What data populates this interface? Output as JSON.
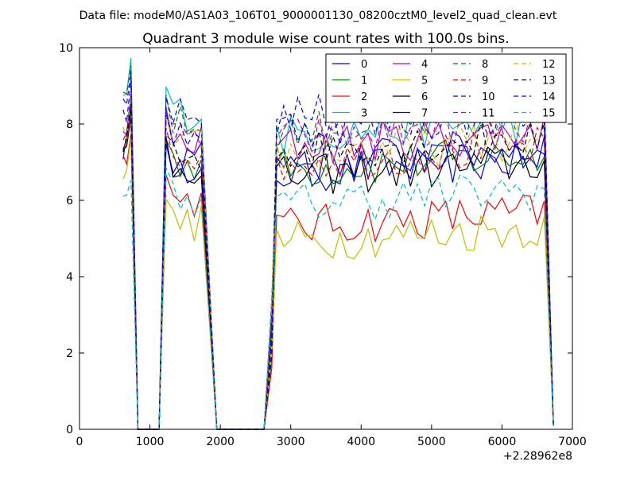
{
  "chart_data": {
    "type": "line",
    "suptitle": "Data file: modeM0/AS1A03_106T01_9000001130_08200cztM0_level2_quad_clean.evt",
    "title": "Quadrant 3 module wise count rates with 100.0s bins.",
    "xlabel": "",
    "ylabel": "",
    "x_offset_label": "+2.28962e8",
    "xlim": [
      0,
      7000
    ],
    "ylim": [
      0,
      10
    ],
    "xticks": [
      0,
      1000,
      2000,
      3000,
      4000,
      5000,
      6000,
      7000
    ],
    "yticks": [
      0,
      2,
      4,
      6,
      8,
      10
    ],
    "grid": false,
    "legend_position": "top-right",
    "legend_columns": 4,
    "series": [
      {
        "name": "0",
        "color": "#0000ff",
        "dash": "solid",
        "level_seg1": 7.6,
        "level_seg2": 7.1,
        "level_seg3": 6.7
      },
      {
        "name": "1",
        "color": "#008000",
        "dash": "solid",
        "level_seg1": 7.5,
        "level_seg2": 7.0,
        "level_seg3": 6.8
      },
      {
        "name": "2",
        "color": "#ff0000",
        "dash": "solid",
        "level_seg1": 7.2,
        "level_seg2": 6.0,
        "level_seg3": 5.3
      },
      {
        "name": "3",
        "color": "#00bfbf",
        "dash": "solid",
        "level_seg1": 8.8,
        "level_seg2": 8.3,
        "level_seg3": 7.7
      },
      {
        "name": "4",
        "color": "#bf00bf",
        "dash": "solid",
        "level_seg1": 7.9,
        "level_seg2": 7.5,
        "level_seg3": 7.4
      },
      {
        "name": "5",
        "color": "#bfbf00",
        "dash": "solid",
        "level_seg1": 7.0,
        "level_seg2": 5.4,
        "level_seg3": 4.9
      },
      {
        "name": "6",
        "color": "#000000",
        "dash": "solid",
        "level_seg1": 7.3,
        "level_seg2": 6.9,
        "level_seg3": 6.6
      },
      {
        "name": "7",
        "color": "#0000ff",
        "dash": "solid",
        "level_seg1": 7.4,
        "level_seg2": 6.9,
        "level_seg3": 7.0
      },
      {
        "name": "8",
        "color": "#008000",
        "dash": "dashed",
        "level_seg1": 8.9,
        "level_seg2": 8.0,
        "level_seg3": 7.8
      },
      {
        "name": "9",
        "color": "#ff0000",
        "dash": "dashed",
        "level_seg1": 7.6,
        "level_seg2": 7.3,
        "level_seg3": 7.0
      },
      {
        "name": "10",
        "color": "#0000ff",
        "dash": "dashed",
        "level_seg1": 8.5,
        "level_seg2": 8.2,
        "level_seg3": 8.2
      },
      {
        "name": "11",
        "color": "#bf00bf",
        "dash": "dashed",
        "level_seg1": 8.0,
        "level_seg2": 7.6,
        "level_seg3": 7.6
      },
      {
        "name": "12",
        "color": "#bfbf00",
        "dash": "dashed",
        "level_seg1": 7.8,
        "level_seg2": 7.4,
        "level_seg3": 7.2
      },
      {
        "name": "13",
        "color": "#000000",
        "dash": "dashed",
        "level_seg1": 7.5,
        "level_seg2": 7.1,
        "level_seg3": 7.3
      },
      {
        "name": "14",
        "color": "#0000ff",
        "dash": "dashed",
        "level_seg1": 8.2,
        "level_seg2": 7.8,
        "level_seg3": 7.9
      },
      {
        "name": "15",
        "color": "#00bfbf",
        "dash": "dashed",
        "level_seg1": 6.0,
        "level_seg2": 6.1,
        "level_seg3": 5.9
      }
    ],
    "segments": [
      {
        "start": 620,
        "end": 730,
        "zero_after": 830
      },
      {
        "start": 1230,
        "end": 1800,
        "zero_after": 1950
      },
      {
        "start": 2800,
        "end": 6650,
        "zero_after": 6730
      }
    ]
  }
}
